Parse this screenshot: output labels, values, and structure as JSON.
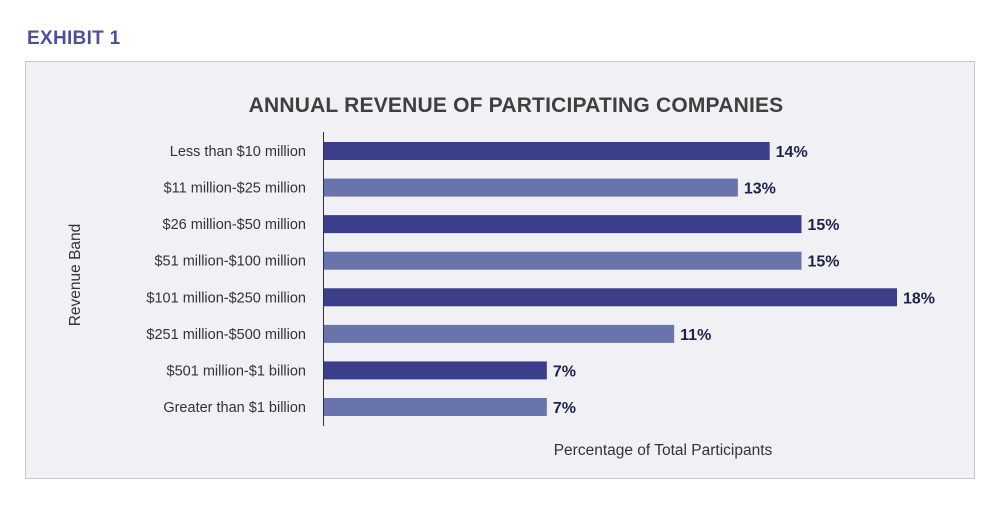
{
  "exhibit_label": "EXHIBIT 1",
  "chart_data": {
    "type": "bar",
    "orientation": "horizontal",
    "title": "ANNUAL REVENUE OF PARTICIPATING COMPANIES",
    "xlabel": "Percentage of Total Participants",
    "ylabel": "Revenue Band",
    "categories": [
      "Less than $10 million",
      "$11 million-$25 million",
      "$26 million-$50 million",
      "$51 million-$100 million",
      "$101 million-$250 million",
      "$251 million-$500 million",
      "$501 million-$1 billion",
      "Greater than $1 billion"
    ],
    "values": [
      14,
      13,
      15,
      15,
      18,
      11,
      7,
      7
    ],
    "value_labels": [
      "14%",
      "13%",
      "15%",
      "15%",
      "18%",
      "11%",
      "7%",
      "7%"
    ],
    "xlim": [
      0,
      18
    ],
    "grid": false,
    "legend": "none",
    "colors": [
      "#3b3e89",
      "#6874ab"
    ]
  }
}
